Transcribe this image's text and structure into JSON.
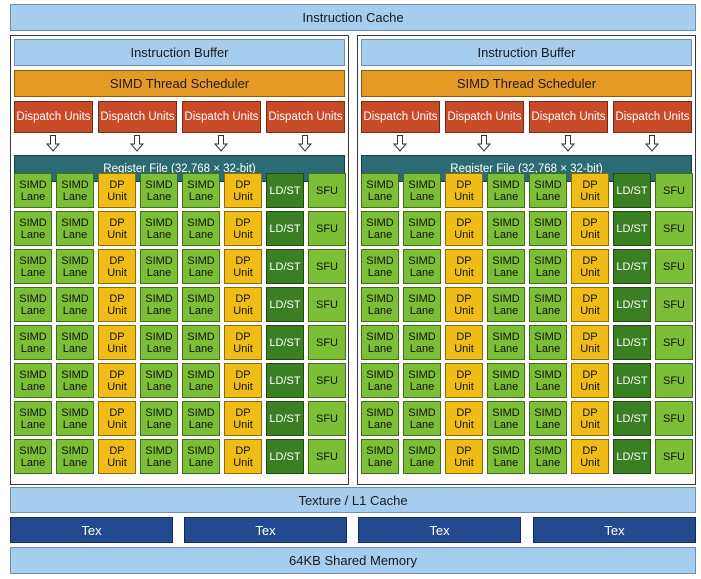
{
  "instruction_cache": "Instruction Cache",
  "instruction_buffer": "Instruction Buffer",
  "scheduler": "SIMD Thread Scheduler",
  "dispatch_label": "Dispatch Units",
  "register_file": "Register File (32,768 × 32-bit)",
  "cells": {
    "simd": "SIMD Lane",
    "dp": "DP Unit",
    "ldst": "LD/ST",
    "sfu": "SFU"
  },
  "texture_cache": "Texture / L1 Cache",
  "tex_units": [
    "Tex",
    "Tex",
    "Tex",
    "Tex"
  ],
  "shared_memory": "64KB Shared Memory",
  "row_pattern": [
    "simd",
    "simd",
    "dp",
    "simd",
    "simd",
    "dp",
    "ldst",
    "sfu"
  ],
  "rows_per_panel": 8,
  "colors": {
    "cache_blue": "#a6cdee",
    "scheduler_orange": "#e69a26",
    "dispatch_red": "#c94a27",
    "register_teal": "#2a6b74",
    "simd_green": "#7cbf36",
    "dp_yellow": "#f0bd16",
    "ldst_darkgreen": "#3a7f22",
    "tex_navy": "#234a8f"
  }
}
